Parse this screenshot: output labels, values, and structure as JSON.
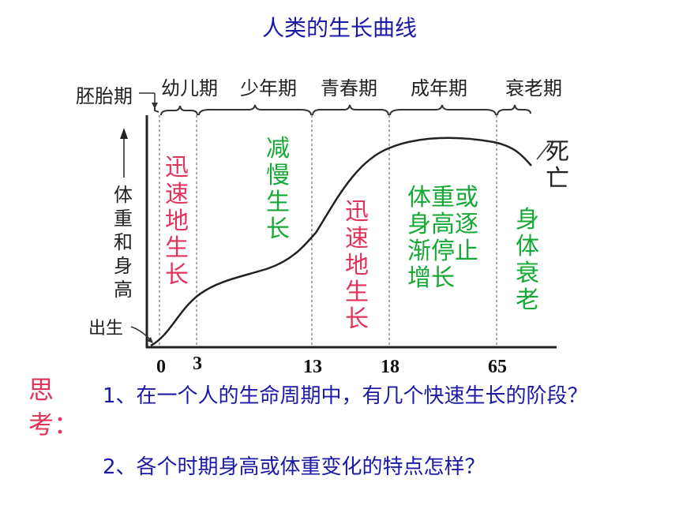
{
  "title": "人类的生长曲线",
  "stages": {
    "embryo": "胚胎期",
    "infant": "幼儿期",
    "juvenile": "少年期",
    "adolescent": "青春期",
    "adult": "成年期",
    "senile": "衰老期"
  },
  "axis": {
    "y_label": "体重和身高",
    "birth_label": "出生",
    "death_label": "死亡",
    "ticks": [
      "0",
      "3",
      "13",
      "18",
      "65"
    ]
  },
  "annotations": {
    "rapid_growth_1": "迅速地生长",
    "slow_growth": "减慢生长",
    "rapid_growth_2": "迅速地生长",
    "growth_stops": "体重或身高逐渐停止增长",
    "body_declines": "身体衰老"
  },
  "questions": {
    "prompt": "思考：",
    "q1": "1、在一个人的生命周期中，有几个快速生长的阶段？",
    "q2": "2、各个时期身高或体重变化的特点怎样？"
  },
  "colors": {
    "title": "#1a1aa6",
    "rapid": "#e0345a",
    "steady": "#16a835"
  }
}
